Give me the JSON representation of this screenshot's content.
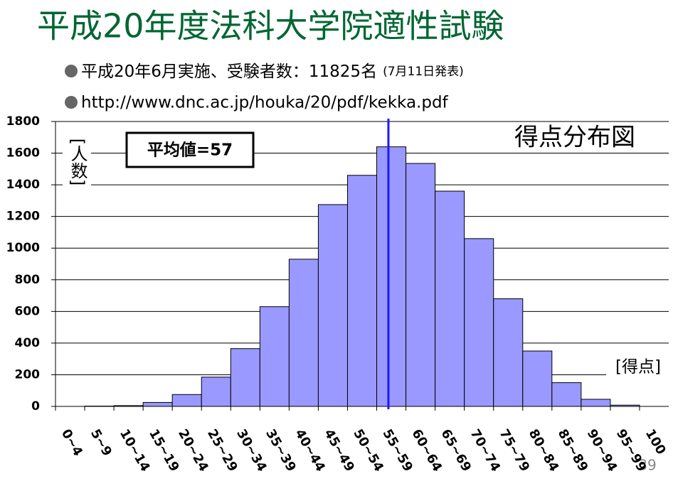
{
  "slide": {
    "title": "平成20年度法科大学院適性試験",
    "bullets": [
      {
        "text": "平成20年6月実施、受験者数：11825名",
        "note": "(7月11日発表)"
      },
      {
        "text": "http://www.dnc.ac.jp/houka/20/pdf/kekka.pdf"
      }
    ],
    "page_number": "39"
  },
  "chart_data": {
    "type": "bar",
    "title": "得点分布図",
    "y_label": "[人数]",
    "x_label": "[得点]",
    "categories": [
      "0~4",
      "5~9",
      "10~14",
      "15~19",
      "20~24",
      "25~29",
      "30~34",
      "35~39",
      "40~44",
      "45~49",
      "50~54",
      "55~59",
      "60~64",
      "65~69",
      "70~74",
      "75~79",
      "80~84",
      "85~89",
      "90~94",
      "95~99",
      "100"
    ],
    "values": [
      0,
      2,
      5,
      25,
      75,
      185,
      365,
      630,
      930,
      1275,
      1460,
      1640,
      1535,
      1360,
      1060,
      680,
      350,
      150,
      45,
      8,
      0
    ],
    "color": "#9999ff",
    "ylim": [
      0,
      1800
    ],
    "yticks": [
      0,
      200,
      400,
      600,
      800,
      1000,
      1200,
      1400,
      1600,
      1800
    ],
    "grid": true,
    "mean_line": {
      "value": 57,
      "label": "平均値=57",
      "color": "#1a1aff"
    }
  }
}
